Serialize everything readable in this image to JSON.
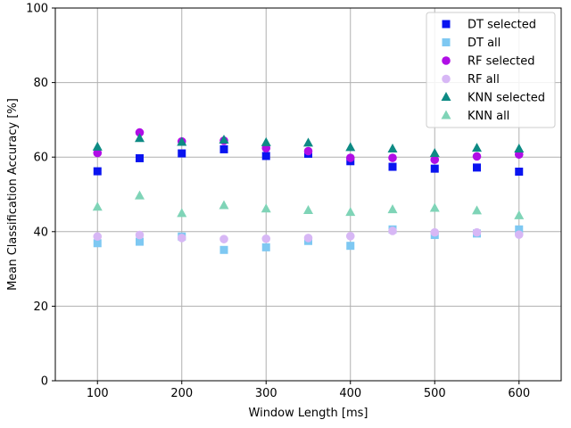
{
  "chart_data": {
    "type": "scatter",
    "title": "",
    "xlabel": "Window Length [ms]",
    "ylabel": "Mean Classification Accuracy [%]",
    "xlim": [
      50,
      650
    ],
    "ylim": [
      0,
      100
    ],
    "xticks": [
      100,
      200,
      300,
      400,
      500,
      600
    ],
    "yticks": [
      0,
      20,
      40,
      60,
      80,
      100
    ],
    "grid": true,
    "legend_position": "top-right",
    "x": [
      100,
      150,
      200,
      250,
      300,
      350,
      400,
      450,
      500,
      550,
      600
    ],
    "series": [
      {
        "name": "DT selected",
        "marker": "square",
        "color": "#0a14f0",
        "values": [
          56.2,
          59.7,
          61.0,
          62.1,
          60.3,
          60.9,
          58.9,
          57.4,
          56.9,
          57.2,
          56.1
        ]
      },
      {
        "name": "DT all",
        "marker": "square",
        "color": "#7ec8f2",
        "values": [
          36.9,
          37.3,
          38.7,
          35.1,
          35.8,
          37.5,
          36.2,
          40.6,
          39.1,
          39.5,
          40.6
        ]
      },
      {
        "name": "RF selected",
        "marker": "circle",
        "color": "#b00ee6",
        "values": [
          61.1,
          66.6,
          64.2,
          64.4,
          62.4,
          61.6,
          59.8,
          59.8,
          59.3,
          60.2,
          60.7
        ]
      },
      {
        "name": "RF all",
        "marker": "circle",
        "color": "#d7b7f5",
        "values": [
          38.7,
          39.1,
          38.3,
          38.0,
          38.1,
          38.3,
          38.8,
          40.2,
          39.8,
          39.8,
          39.2
        ]
      },
      {
        "name": "KNN selected",
        "marker": "triangle",
        "color": "#0d8a84",
        "values": [
          62.7,
          65.0,
          64.0,
          64.6,
          63.9,
          63.8,
          62.6,
          62.2,
          61.0,
          62.4,
          62.2
        ]
      },
      {
        "name": "KNN all",
        "marker": "triangle",
        "color": "#7fd4b7",
        "values": [
          46.6,
          49.6,
          44.9,
          47.0,
          46.1,
          45.7,
          45.2,
          45.9,
          46.3,
          45.6,
          44.3
        ]
      }
    ]
  }
}
